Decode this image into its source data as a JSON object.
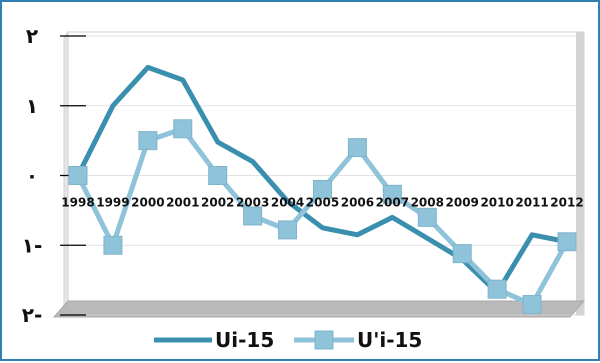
{
  "chart_data": {
    "type": "line",
    "title": "",
    "xlabel": "",
    "ylabel": "",
    "ylim": [
      -2,
      2
    ],
    "x": [
      "1998",
      "1999",
      "2000",
      "2001",
      "2002",
      "2003",
      "2004",
      "2005",
      "2006",
      "2007",
      "2008",
      "2009",
      "2010",
      "2011",
      "2012"
    ],
    "y_ticks": [
      -2,
      -1,
      0,
      1,
      2
    ],
    "y_tick_labels": [
      "٢-",
      "١-",
      "٠",
      "١",
      "٢"
    ],
    "grid": "horizontal",
    "legend_position": "bottom",
    "series": [
      {
        "name": "Ui-15",
        "color": "#3a8fae",
        "marker": "none",
        "values": [
          0,
          1.0,
          1.55,
          1.37,
          0.48,
          0.2,
          -0.37,
          -0.75,
          -0.85,
          -0.6,
          -0.9,
          -1.2,
          -1.68,
          -0.85,
          -0.95
        ]
      },
      {
        "name": "U'i-15",
        "color": "#8ec3d9",
        "marker": "square",
        "values": [
          0,
          -1.0,
          0.5,
          0.67,
          0,
          -0.58,
          -0.78,
          -0.2,
          0.4,
          -0.27,
          -0.6,
          -1.12,
          -1.63,
          -1.85,
          -0.95
        ]
      }
    ],
    "colors": {
      "plot_background": "#ffffff",
      "floor": "#b9b9b9",
      "back_wall_edge": "#cfcfcf",
      "gridline": "#000000",
      "frame_border": "#2f7fb5"
    }
  }
}
